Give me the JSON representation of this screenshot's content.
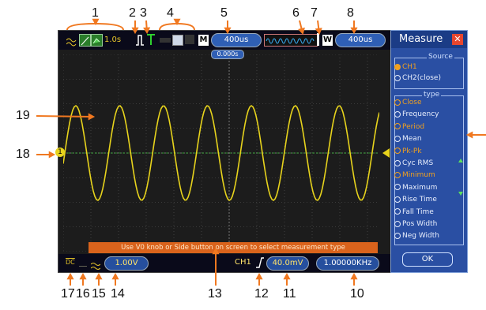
{
  "callouts": {
    "top": [
      "1",
      "2",
      "3",
      "4",
      "5",
      "6",
      "7",
      "8"
    ],
    "left": [
      "19",
      "18"
    ],
    "bottom": [
      "17",
      "16",
      "15",
      "14",
      "13",
      "12",
      "11",
      "10"
    ]
  },
  "topbar": {
    "time_value": "1.0s",
    "memory_marker": "M",
    "timebase": "400us",
    "window_marker": "W",
    "window_timebase": "400us",
    "trigger_offset": "0.000s"
  },
  "channel_marker": "1",
  "message": "Use V0 knob or Side button on screen to select measurement type",
  "bottombar": {
    "coupling": "DC",
    "volts_div": "1.00V",
    "trigger_channel": "CH1",
    "trigger_level": "40.0mV",
    "frequency": "1.00000KHz"
  },
  "measure": {
    "title": "Measure",
    "source_label": "Source",
    "sources": [
      "CH1",
      "CH2(close)"
    ],
    "type_label": "type",
    "types": [
      "Close",
      "Frequency",
      "Period",
      "Mean",
      "Pk-Pk",
      "Cyc RMS",
      "Minimum",
      "Maximum",
      "Rise Time",
      "Fall Time",
      "Pos Width",
      "Neg Width"
    ],
    "ok_label": "OK"
  },
  "colors": {
    "trace": "#e7d31c",
    "arrow": "#f07820",
    "panel": "#2a4fa3",
    "highlight": "#f0a020"
  }
}
